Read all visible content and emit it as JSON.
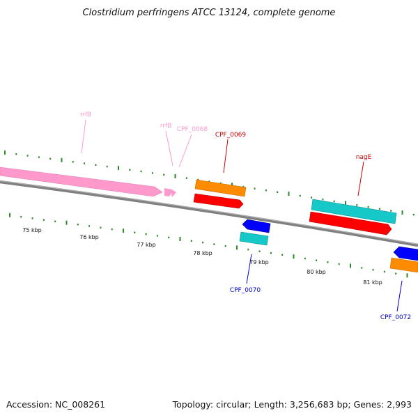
{
  "title": "Clostridium perfringens ATCC 13124, complete genome",
  "footer": {
    "accession": "Accession: NC_008261",
    "topology": "Topology: circular; Length: 3,256,683 bp; Genes: 2,993"
  },
  "colors": {
    "backbone": "#808080",
    "tick": "#2a8a2a",
    "rrna": "#ff99cc",
    "orange": "#ff8c00",
    "red": "#ff0000",
    "cyan": "#17c8c8",
    "blue": "#0000ff",
    "label_red": "#cc0000",
    "label_blue": "#0000cc",
    "label_pink": "#ff99cc"
  },
  "scale_labels": [
    "75 kbp",
    "76 kbp",
    "77 kbp",
    "78 kbp",
    "79 kbp",
    "80 kbp",
    "81 kbp"
  ],
  "gene_labels": {
    "rrlB": "rrlB",
    "rrfB": "rrfB",
    "cpf0068": "CPF_0068",
    "cpf0069": "CPF_0069",
    "nagE": "nagE",
    "cpf0070": "CPF_0070",
    "cpf0072": "CPF_0072"
  }
}
